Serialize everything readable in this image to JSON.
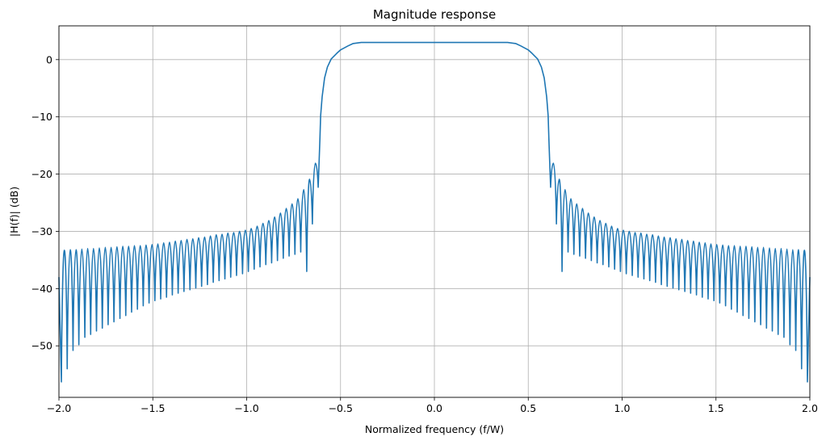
{
  "chart_data": {
    "type": "line",
    "title": "Magnitude response",
    "xlabel": "Normalized frequency (f/W)",
    "ylabel": "|H(f)| (dB)",
    "xlim": [
      -2.0,
      2.0
    ],
    "ylim": [
      -59.0,
      5.9
    ],
    "grid": true,
    "x_ticks": [
      "−2.0",
      "−1.5",
      "−1.0",
      "−0.5",
      "0.0",
      "0.5",
      "1.0",
      "1.5",
      "2.0"
    ],
    "x_tick_values": [
      -2.0,
      -1.5,
      -1.0,
      -0.5,
      0.0,
      0.5,
      1.0,
      1.5,
      2.0
    ],
    "y_ticks": [
      "0",
      "−10",
      "−20",
      "−30",
      "−40",
      "−50"
    ],
    "y_tick_values": [
      0,
      -10,
      -20,
      -30,
      -40,
      -50
    ],
    "line_color": "#1f77b4",
    "symmetric_about_x0": true,
    "series": [
      {
        "x": [
          -2.0,
          -1.987,
          -1.971,
          -1.956,
          -1.94,
          -1.925,
          -1.909,
          -1.894,
          -1.878,
          -1.862,
          -1.847,
          -1.831,
          -1.816,
          -1.8,
          -1.785,
          -1.769,
          -1.753,
          -1.738,
          -1.722,
          -1.707,
          -1.691,
          -1.675,
          -1.66,
          -1.644,
          -1.629,
          -1.613,
          -1.598,
          -1.582,
          -1.567,
          -1.551,
          -1.536,
          -1.52,
          -1.504,
          -1.489,
          -1.473,
          -1.458,
          -1.442,
          -1.427,
          -1.411,
          -1.396,
          -1.38,
          -1.365,
          -1.349,
          -1.334,
          -1.318,
          -1.302,
          -1.287,
          -1.271,
          -1.256,
          -1.24,
          -1.224,
          -1.209,
          -1.193,
          -1.178,
          -1.162,
          -1.147,
          -1.131,
          -1.116,
          -1.1,
          -1.085,
          -1.069,
          -1.054,
          -1.038,
          -1.022,
          -1.007,
          -0.991,
          -0.976,
          -0.96,
          -0.944,
          -0.929,
          -0.913,
          -0.898,
          -0.882,
          -0.867,
          -0.851,
          -0.836,
          -0.82,
          -0.805,
          -0.789,
          -0.774,
          -0.758,
          -0.743,
          -0.727,
          -0.712,
          -0.696,
          -0.68,
          -0.665,
          -0.65,
          -0.634,
          -0.619,
          -0.61,
          -0.606,
          -0.598,
          -0.585,
          -0.57,
          -0.55,
          -0.52,
          -0.5,
          -0.46,
          -0.434,
          -0.39,
          0.0
        ],
        "y": [
          -38.0,
          -56.3,
          -33.3,
          -54.0,
          -33.2,
          -50.8,
          -33.2,
          -49.8,
          -33.1,
          -48.5,
          -33.0,
          -48.0,
          -33.0,
          -47.4,
          -32.9,
          -46.9,
          -32.8,
          -46.3,
          -32.8,
          -45.8,
          -32.7,
          -45.2,
          -32.6,
          -44.7,
          -32.6,
          -44.1,
          -32.5,
          -43.6,
          -32.5,
          -43.0,
          -32.4,
          -42.5,
          -32.3,
          -42.1,
          -32.2,
          -41.8,
          -32.0,
          -41.5,
          -31.9,
          -41.1,
          -31.7,
          -40.8,
          -31.6,
          -40.5,
          -31.4,
          -40.2,
          -31.3,
          -39.9,
          -31.1,
          -39.6,
          -31.0,
          -39.3,
          -30.8,
          -38.9,
          -30.6,
          -38.6,
          -30.5,
          -38.3,
          -30.3,
          -38.0,
          -30.2,
          -37.7,
          -30.0,
          -37.4,
          -29.8,
          -37.0,
          -29.5,
          -36.6,
          -29.1,
          -36.2,
          -28.6,
          -35.8,
          -28.1,
          -35.5,
          -27.5,
          -35.1,
          -26.8,
          -34.7,
          -26.0,
          -34.3,
          -25.2,
          -34.0,
          -24.3,
          -33.6,
          -22.7,
          -37.0,
          -20.9,
          -28.7,
          -18.1,
          -22.3,
          -14.0,
          -9.8,
          -6.5,
          -3.2,
          -1.3,
          0.1,
          1.1,
          1.7,
          2.4,
          2.8,
          3.0,
          3.0
        ]
      }
    ]
  }
}
